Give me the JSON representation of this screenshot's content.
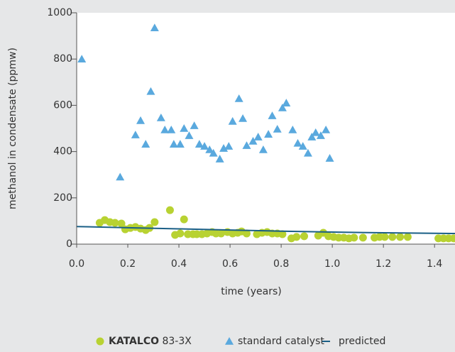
{
  "chart_data": {
    "type": "scatter",
    "xlabel": "time (years)",
    "ylabel": "methanol in condensate (ppmw)",
    "xlim": [
      0,
      1.48
    ],
    "ylim": [
      0,
      1000
    ],
    "xticks": [
      {
        "value": 0,
        "label": "0.0"
      },
      0.2,
      0.4,
      0.6,
      0.8,
      {
        "value": 1,
        "label": "1.0"
      },
      1.2,
      1.4
    ],
    "yticks": [
      0,
      200,
      400,
      600,
      800,
      1000
    ],
    "series": [
      {
        "name": "KATALCO 83-3X",
        "color": "#b8d232",
        "marker": "circle",
        "x": [
          0.09,
          0.11,
          0.13,
          0.15,
          0.175,
          0.19,
          0.21,
          0.23,
          0.25,
          0.27,
          0.285,
          0.305,
          0.365,
          0.385,
          0.405,
          0.42,
          0.435,
          0.455,
          0.47,
          0.49,
          0.51,
          0.53,
          0.545,
          0.565,
          0.59,
          0.61,
          0.63,
          0.645,
          0.665,
          0.705,
          0.725,
          0.745,
          0.765,
          0.785,
          0.805,
          0.84,
          0.86,
          0.89,
          0.945,
          0.965,
          0.985,
          1.005,
          1.025,
          1.045,
          1.065,
          1.085,
          1.12,
          1.165,
          1.185,
          1.205,
          1.235,
          1.265,
          1.295,
          1.415,
          1.435,
          1.455,
          1.475
        ],
        "values": [
          92,
          104,
          95,
          92,
          89,
          64,
          70,
          74,
          67,
          61,
          70,
          95,
          147,
          40,
          46,
          107,
          43,
          43,
          43,
          43,
          46,
          52,
          46,
          46,
          52,
          46,
          49,
          55,
          46,
          43,
          49,
          52,
          46,
          46,
          43,
          25,
          31,
          34,
          37,
          49,
          34,
          31,
          28,
          28,
          25,
          28,
          28,
          28,
          31,
          31,
          31,
          31,
          31,
          25,
          25,
          25,
          25
        ]
      },
      {
        "name": "standard catalyst",
        "color": "#5aa9de",
        "marker": "triangle",
        "x": [
          0.02,
          0.17,
          0.23,
          0.25,
          0.27,
          0.29,
          0.305,
          0.33,
          0.345,
          0.37,
          0.38,
          0.405,
          0.42,
          0.44,
          0.46,
          0.48,
          0.5,
          0.52,
          0.535,
          0.56,
          0.575,
          0.595,
          0.61,
          0.635,
          0.65,
          0.665,
          0.69,
          0.71,
          0.73,
          0.75,
          0.765,
          0.785,
          0.805,
          0.82,
          0.845,
          0.865,
          0.885,
          0.905,
          0.92,
          0.935,
          0.955,
          0.975,
          0.99
        ],
        "values": [
          800,
          290,
          472,
          534,
          432,
          660,
          935,
          546,
          494,
          494,
          432,
          432,
          500,
          469,
          512,
          432,
          423,
          408,
          393,
          368,
          414,
          423,
          531,
          629,
          543,
          426,
          445,
          463,
          408,
          475,
          555,
          497,
          589,
          610,
          494,
          436,
          423,
          393,
          463,
          482,
          469,
          494,
          371
        ]
      },
      {
        "name": "predicted",
        "color": "#1a5f86",
        "marker": "line",
        "x": [
          0,
          0.2,
          0.4,
          0.6,
          0.8,
          1.0,
          1.2,
          1.48
        ],
        "values": [
          76,
          71,
          66,
          61,
          56,
          52,
          49,
          46
        ]
      }
    ]
  }
}
